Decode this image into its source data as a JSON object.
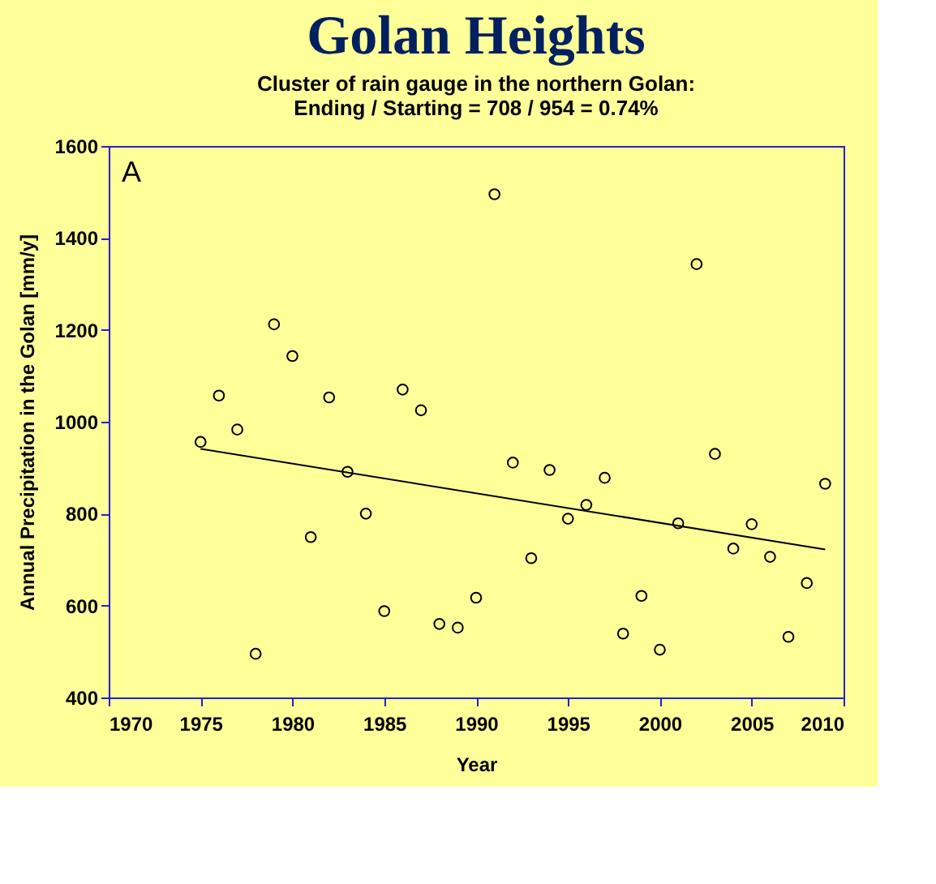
{
  "chart_data": {
    "type": "scatter",
    "title": "Golan Heights",
    "subtitle": [
      "Cluster of rain gauge in the northern Golan:",
      "Ending / Starting = 708 / 954 = 0.74%"
    ],
    "xlabel": "Year",
    "ylabel": "Annual Precipitation in the Golan [mm/y]",
    "annotations": [
      "A"
    ],
    "xlim": [
      1970,
      2010
    ],
    "xticks": [
      1970,
      1975,
      1980,
      1985,
      1990,
      1995,
      2000,
      2005,
      2010
    ],
    "ylim": [
      400,
      1600
    ],
    "yticks": [
      400,
      600,
      800,
      1000,
      1200,
      1400,
      1600
    ],
    "grid": false,
    "marker": "circle",
    "series": [
      {
        "color": "#000000",
        "x": [
          1975,
          1976,
          1977,
          1978,
          1979,
          1980,
          1981,
          1982,
          1983,
          1984,
          1985,
          1986,
          1987,
          1988,
          1989,
          1990,
          1991,
          1992,
          1993,
          1994,
          1995,
          1996,
          1997,
          1998,
          1999,
          2000,
          2001,
          2002,
          2003,
          2004,
          2005,
          2006,
          2007,
          2008,
          2009
        ],
        "values": [
          956,
          1057,
          983,
          495,
          1212,
          1143,
          749,
          1053,
          891,
          800,
          588,
          1070,
          1025,
          560,
          552,
          617,
          1495,
          911,
          703,
          895,
          789,
          819,
          878,
          539,
          621,
          504,
          779,
          1343,
          930,
          724,
          777,
          706,
          532,
          649,
          865
        ]
      },
      {
        "type": "line",
        "color": "#000000",
        "line_style": "solid",
        "marker": "none",
        "x": [
          1975,
          2009
        ],
        "values": [
          941,
          722
        ]
      }
    ]
  }
}
